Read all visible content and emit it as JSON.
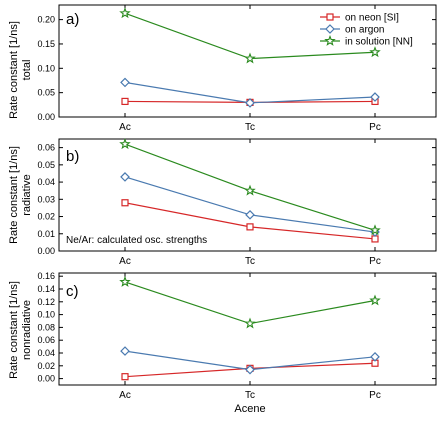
{
  "colors": {
    "neon": "#d62728",
    "argon": "#4a7ab0",
    "solution": "#2a8a1e"
  },
  "chart_data": [
    {
      "type": "line",
      "panel_label": "a)",
      "categories": [
        "Ac",
        "Tc",
        "Pc"
      ],
      "ylabel_lines": [
        "Rate constant [1/ns]",
        "total"
      ],
      "xlabel": "",
      "ylim": [
        0,
        0.23
      ],
      "yticks": [
        "0.00",
        "0.05",
        "0.10",
        "0.15",
        "0.20"
      ],
      "yticks_values": [
        0,
        0.05,
        0.1,
        0.15,
        0.2
      ],
      "series": [
        {
          "name": "on neon [SI]",
          "color_key": "neon",
          "marker": "square",
          "values": [
            0.032,
            0.03,
            0.032
          ]
        },
        {
          "name": "on argon",
          "color_key": "argon",
          "marker": "diamond",
          "values": [
            0.071,
            0.029,
            0.041
          ]
        },
        {
          "name": "in solution [NN]",
          "color_key": "solution",
          "marker": "star",
          "values": [
            0.213,
            0.12,
            0.133
          ]
        }
      ],
      "legend": "top-right",
      "annotation": ""
    },
    {
      "type": "line",
      "panel_label": "b)",
      "categories": [
        "Ac",
        "Tc",
        "Pc"
      ],
      "ylabel_lines": [
        "Rate constant [1/ns]",
        "radiative"
      ],
      "xlabel": "",
      "ylim": [
        0,
        0.065
      ],
      "yticks": [
        "0.00",
        "0.01",
        "0.02",
        "0.03",
        "0.04",
        "0.05",
        "0.06"
      ],
      "yticks_values": [
        0,
        0.01,
        0.02,
        0.03,
        0.04,
        0.05,
        0.06
      ],
      "series": [
        {
          "name": "on neon [SI]",
          "color_key": "neon",
          "marker": "square",
          "values": [
            0.028,
            0.014,
            0.007
          ]
        },
        {
          "name": "on argon",
          "color_key": "argon",
          "marker": "diamond",
          "values": [
            0.043,
            0.021,
            0.011
          ]
        },
        {
          "name": "in solution [NN]",
          "color_key": "solution",
          "marker": "star",
          "values": [
            0.062,
            0.035,
            0.012
          ]
        }
      ],
      "legend": "none",
      "annotation": "Ne/Ar: calculated osc. strengths"
    },
    {
      "type": "line",
      "panel_label": "c)",
      "categories": [
        "Ac",
        "Tc",
        "Pc"
      ],
      "ylabel_lines": [
        "Rate constant [1/ns]",
        "nonradiative"
      ],
      "xlabel": "Acene",
      "ylim": [
        -0.01,
        0.165
      ],
      "yticks": [
        "0.00",
        "0.02",
        "0.04",
        "0.06",
        "0.08",
        "0.10",
        "0.12",
        "0.14",
        "0.16"
      ],
      "yticks_values": [
        0,
        0.02,
        0.04,
        0.06,
        0.08,
        0.1,
        0.12,
        0.14,
        0.16
      ],
      "series": [
        {
          "name": "on neon [SI]",
          "color_key": "neon",
          "marker": "square",
          "values": [
            0.003,
            0.016,
            0.024
          ]
        },
        {
          "name": "on argon",
          "color_key": "argon",
          "marker": "diamond",
          "values": [
            0.043,
            0.014,
            0.034
          ]
        },
        {
          "name": "in solution [NN]",
          "color_key": "solution",
          "marker": "star",
          "values": [
            0.151,
            0.086,
            0.122
          ]
        }
      ],
      "legend": "none",
      "annotation": ""
    }
  ]
}
